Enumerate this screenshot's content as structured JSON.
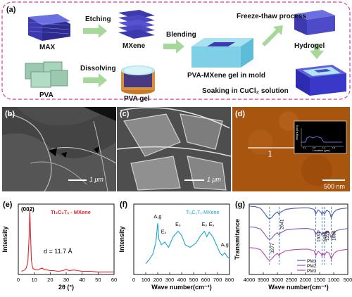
{
  "panel_a": {
    "label": "(a)",
    "materials": {
      "max": "MAX",
      "mxene": "MXene",
      "pva": "PVA",
      "pva_gel": "PVA gel",
      "mold": "PVA-MXene gel in mold",
      "hydrogel": "Hydrogel"
    },
    "steps": {
      "etching": "Etching",
      "dissolving": "Dissolving",
      "blending": "Blending",
      "freeze_thaw": "Freeze-thaw process",
      "soaking": "Soaking in CuCl₂ solution"
    }
  },
  "panel_b": {
    "label": "(b)",
    "scale": "1 μm"
  },
  "panel_c": {
    "label": "(c)",
    "scale": "1 μm"
  },
  "panel_d": {
    "label": "(d)",
    "scale": "500 nm",
    "line_label": "1",
    "inset": {
      "ylabel": "Height (nm)",
      "xlabel": "Location (μm)",
      "x_ticks": [
        "0.4",
        "0.8",
        "1.2",
        "1.6"
      ]
    }
  },
  "chart_data": [
    {
      "type": "line",
      "panel": "(e)",
      "title": "Ti₃C₂Tₓ - MXene",
      "annotations": [
        "(002)",
        "d = 11.7 Å"
      ],
      "xlabel": "2θ (°)",
      "ylabel": "Intensity",
      "xlim": [
        0,
        60
      ],
      "x_ticks": [
        0,
        10,
        20,
        30,
        40,
        50,
        60
      ],
      "series": [
        {
          "color": "#e8202a",
          "x": [
            2,
            4,
            5,
            6,
            6.8,
            7.2,
            7.6,
            8.2,
            9,
            10,
            12,
            14,
            15,
            16,
            18,
            20,
            22,
            25,
            28,
            30,
            32,
            35,
            37,
            40,
            45,
            50,
            55,
            60
          ],
          "y": [
            5,
            7,
            10,
            20,
            60,
            100,
            70,
            22,
            10,
            8,
            7,
            9,
            10,
            8,
            7,
            6,
            6,
            5,
            6,
            8,
            6,
            7,
            6,
            5,
            5,
            4,
            4,
            4
          ]
        }
      ]
    },
    {
      "type": "line",
      "panel": "(f)",
      "title": "Ti₃C₂Tₓ-MXene",
      "annotations": [
        "A₁g",
        "E₉",
        "E₉",
        "E₉",
        "E₉",
        "A₁g"
      ],
      "xlabel": "Wave number(cm⁻¹)",
      "ylabel": "Intensity",
      "xlim": [
        0,
        800
      ],
      "x_ticks": [
        0,
        100,
        200,
        300,
        400,
        500,
        600,
        700,
        800
      ],
      "series": [
        {
          "color": "#1aa3d9",
          "x": [
            100,
            130,
            160,
            185,
            200,
            210,
            230,
            260,
            290,
            330,
            370,
            400,
            430,
            470,
            520,
            560,
            590,
            610,
            630,
            660,
            690,
            720,
            740,
            760,
            780,
            800
          ],
          "y": [
            20,
            28,
            38,
            60,
            95,
            65,
            55,
            60,
            50,
            70,
            80,
            72,
            55,
            50,
            58,
            72,
            80,
            70,
            78,
            70,
            55,
            40,
            35,
            40,
            33,
            30
          ]
        }
      ]
    },
    {
      "type": "line",
      "panel": "(g)",
      "xlabel": "Wave number(cm⁻¹)",
      "ylabel": "Transmitance",
      "xlim": [
        4000,
        500
      ],
      "x_ticks": [
        4000,
        3500,
        3000,
        2500,
        2000,
        1500,
        1000,
        500
      ],
      "peak_labels": [
        "3277",
        "2941",
        "1634",
        "1416",
        "1328",
        "1088"
      ],
      "peak_positions": [
        3277,
        2941,
        1634,
        1416,
        1328,
        1088
      ],
      "series": [
        {
          "name": "PM1",
          "color": "#3d5bb4",
          "offset": 2.0
        },
        {
          "name": "PM2",
          "color": "#7e5ab0",
          "offset": 1.0
        },
        {
          "name": "PM3",
          "color": "#b84aa8",
          "offset": 0.0
        }
      ],
      "x": [
        4000,
        3800,
        3600,
        3450,
        3350,
        3277,
        3200,
        3100,
        3000,
        2941,
        2900,
        2700,
        2400,
        2100,
        1900,
        1700,
        1634,
        1550,
        1450,
        1416,
        1380,
        1328,
        1250,
        1150,
        1088,
        1000,
        900,
        800,
        700,
        600,
        500
      ],
      "y": [
        1.0,
        0.98,
        0.9,
        0.65,
        0.45,
        0.38,
        0.45,
        0.62,
        0.72,
        0.6,
        0.7,
        0.85,
        0.9,
        0.92,
        0.92,
        0.85,
        0.62,
        0.82,
        0.7,
        0.58,
        0.72,
        0.62,
        0.8,
        0.72,
        0.45,
        0.7,
        0.82,
        0.86,
        0.88,
        0.9,
        0.92
      ]
    }
  ]
}
